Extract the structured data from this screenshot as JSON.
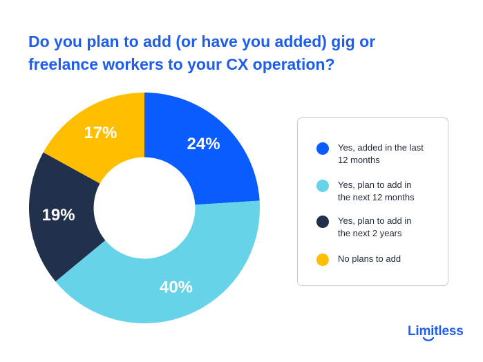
{
  "title_lines": [
    "Do you plan to add (or have you added) gig or",
    "freelance workers to your CX operation?"
  ],
  "chart_data": {
    "type": "pie",
    "title": "Do you plan to add (or have you added) gig or freelance workers to your CX operation?",
    "categories": [
      "Yes, added in the last 12 months",
      "Yes, plan to add in the next 12 months",
      "Yes, plan to add in the next 2 years",
      "No plans to add"
    ],
    "values": [
      24,
      40,
      19,
      17
    ],
    "value_labels": [
      "24%",
      "40%",
      "19%",
      "17%"
    ],
    "colors": [
      "#0b5cff",
      "#66d3e8",
      "#21304b",
      "#ffbf00"
    ],
    "hole_ratio": 0.44,
    "legend_placement": "right",
    "legend_items": [
      {
        "label_lines": [
          "Yes, added in the last",
          "12 months"
        ],
        "color": "#0b5cff"
      },
      {
        "label_lines": [
          "Yes, plan to add in",
          "the next 12 months"
        ],
        "color": "#66d3e8"
      },
      {
        "label_lines": [
          "Yes, plan to add in",
          "the next 2 years"
        ],
        "color": "#21304b"
      },
      {
        "label_lines": [
          "No plans to add"
        ],
        "color": "#ffbf00"
      }
    ]
  },
  "brand": {
    "name": "Limitless",
    "color": "#1f5eea",
    "icon": "smile-mark"
  }
}
